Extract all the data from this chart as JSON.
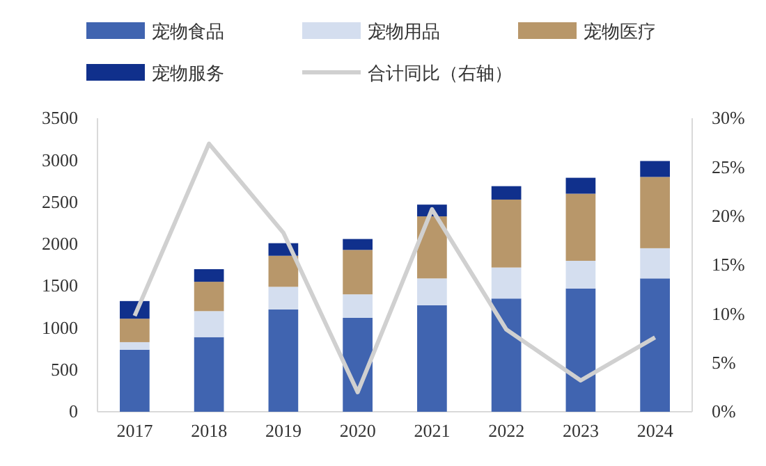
{
  "chart_data": {
    "type": "bar",
    "stacked": true,
    "categories": [
      "2017",
      "2018",
      "2019",
      "2020",
      "2021",
      "2022",
      "2023",
      "2024"
    ],
    "series": [
      {
        "name": "宠物食品",
        "color": "#4064b0",
        "values": [
          740,
          890,
          1220,
          1120,
          1270,
          1350,
          1470,
          1590
        ]
      },
      {
        "name": "宠物用品",
        "color": "#d4deef",
        "values": [
          90,
          310,
          270,
          280,
          320,
          370,
          330,
          360
        ]
      },
      {
        "name": "宠物医疗",
        "color": "#b8976a",
        "values": [
          280,
          350,
          370,
          530,
          740,
          810,
          800,
          850
        ]
      },
      {
        "name": "宠物服务",
        "color": "#10308c",
        "values": [
          210,
          150,
          150,
          130,
          140,
          160,
          190,
          190
        ]
      },
      {
        "name": "合计同比（右轴）",
        "type": "line",
        "axis": "y2",
        "color": "#d0d0d0",
        "values": [
          9.8,
          27.4,
          18.3,
          2.0,
          20.7,
          8.4,
          3.2,
          7.6
        ]
      }
    ],
    "ylim": [
      0,
      3500
    ],
    "yticks": [
      0,
      500,
      1000,
      1500,
      2000,
      2500,
      3000,
      3500
    ],
    "y2lim": [
      0,
      30
    ],
    "y2ticks": [
      {
        "value": 0,
        "label": "0%"
      },
      {
        "value": 5,
        "label": "5%"
      },
      {
        "value": 10,
        "label": "10%"
      },
      {
        "value": 15,
        "label": "15%"
      },
      {
        "value": 20,
        "label": "20%"
      },
      {
        "value": 25,
        "label": "25%"
      },
      {
        "value": 30,
        "label": "30%"
      }
    ],
    "legend": "top",
    "grid": false
  }
}
